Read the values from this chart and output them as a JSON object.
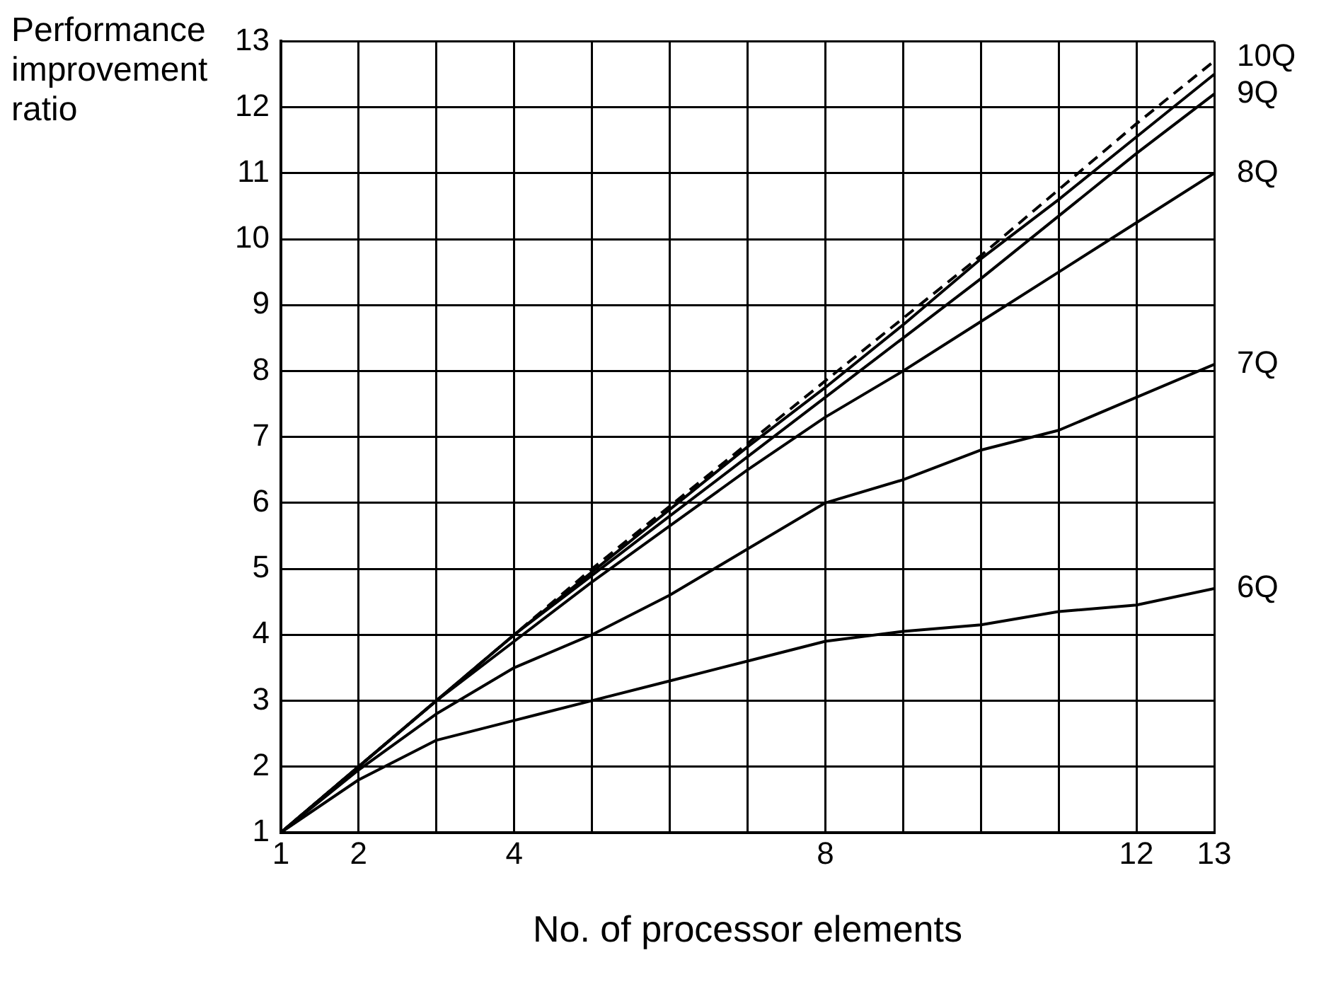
{
  "chart_data": {
    "type": "line",
    "xlabel": "No. of processor elements",
    "ylabel": "Performance improvement ratio",
    "x": [
      1,
      2,
      3,
      4,
      5,
      6,
      7,
      8,
      9,
      10,
      11,
      12,
      13
    ],
    "xlim": [
      1,
      13
    ],
    "xticks": [
      1,
      2,
      {
        "value": 3,
        "label": null
      },
      4,
      {
        "value": 5,
        "label": null
      },
      {
        "value": 6,
        "label": null
      },
      {
        "value": 7,
        "label": null
      },
      8,
      {
        "value": 9,
        "label": null
      },
      {
        "value": 10,
        "label": null
      },
      {
        "value": 11,
        "label": null
      },
      12,
      13
    ],
    "ylim": [
      1,
      13
    ],
    "yticks": [
      1,
      2,
      3,
      4,
      5,
      6,
      7,
      8,
      9,
      10,
      11,
      12,
      13
    ],
    "grid": true,
    "legend": false,
    "marker": "none",
    "series": [
      {
        "name": "6Q",
        "color": "#000000",
        "values": [
          1,
          1.8,
          2.4,
          2.7,
          3.0,
          3.3,
          3.6,
          3.9,
          4.05,
          4.15,
          4.35,
          4.45,
          4.7
        ]
      },
      {
        "name": "7Q",
        "color": "#000000",
        "values": [
          1,
          1.95,
          2.8,
          3.5,
          4.0,
          4.6,
          5.3,
          6.0,
          6.35,
          6.8,
          7.1,
          7.6,
          8.1
        ]
      },
      {
        "name": "8Q",
        "color": "#000000",
        "values": [
          1,
          2,
          3,
          3.9,
          4.8,
          5.65,
          6.5,
          7.3,
          8.0,
          8.75,
          9.5,
          10.25,
          11.0
        ]
      },
      {
        "name": "9Q",
        "color": "#000000",
        "values": [
          1,
          2,
          3,
          4,
          4.9,
          5.8,
          6.7,
          7.6,
          8.5,
          9.4,
          10.35,
          11.3,
          12.2
        ]
      },
      {
        "name": "10Q",
        "color": "#000000",
        "values": [
          1,
          2,
          3,
          4,
          4.95,
          5.9,
          6.85,
          7.75,
          8.7,
          9.7,
          10.6,
          11.55,
          12.5
        ]
      },
      {
        "color": "#000000",
        "line_style": "dashed",
        "values": [
          1,
          2,
          3,
          4,
          5,
          5.95,
          6.9,
          7.85,
          8.8,
          9.75,
          10.75,
          11.75,
          12.7
        ]
      }
    ]
  }
}
